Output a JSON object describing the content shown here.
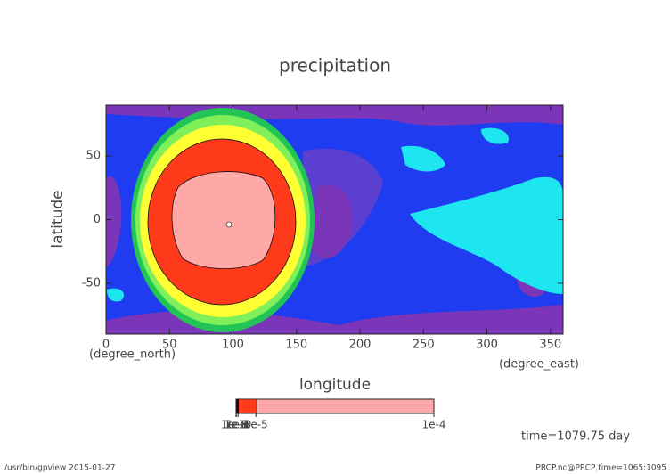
{
  "chart_data": {
    "type": "contour",
    "title": "precipitation",
    "xlabel": "longitude",
    "ylabel": "latitude",
    "xunits": "(degree_east)",
    "yunits": "(degree_north)",
    "xlim": [
      0,
      360
    ],
    "xticks": [
      0,
      50,
      100,
      150,
      200,
      250,
      300,
      350
    ],
    "ylim": [
      -90,
      90
    ],
    "yticks": [
      -50,
      0,
      50
    ],
    "colorbar": {
      "lim": [
        0,
        0.0001
      ],
      "ticks": [
        {
          "value": 1e-10,
          "label": "1e-10"
        },
        {
          "value": 1e-09,
          "label": "1e-9"
        },
        {
          "value": 1e-08,
          "label": "1e-8"
        },
        {
          "value": 1e-07,
          "label": "1e-7"
        },
        {
          "value": 1e-06,
          "label": "1e-6"
        },
        {
          "value": 1e-05,
          "label": "1e-5"
        },
        {
          "value": 0.0001,
          "label": "1e-4"
        }
      ]
    },
    "annotation": "time=1079.75 day",
    "footer_left": "/usr/bin/gpview  2015-01-27",
    "footer_right": "PRCP.nc@PRCP,time=1065:1095"
  }
}
